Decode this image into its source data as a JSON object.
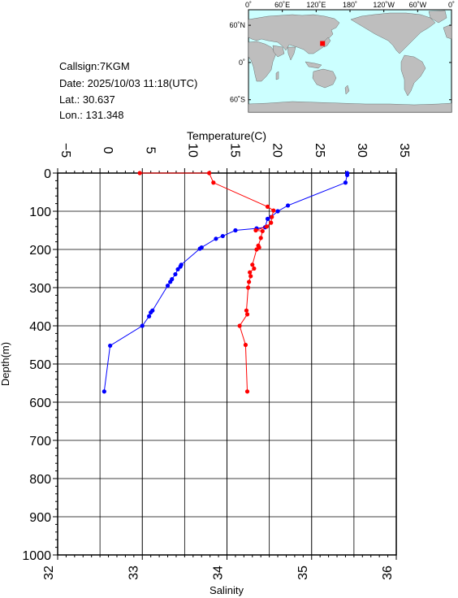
{
  "info": {
    "callsign": "Callsign:7KGM",
    "date": "Date:  2025/10/03 11:18(UTC)",
    "lat": "Lat.:   30.637",
    "lon": "Lon.:  131.348"
  },
  "map": {
    "lon_labels": [
      "0˚",
      "60˚E",
      "120˚E",
      "180˚",
      "120˚W",
      "60˚W",
      "0˚"
    ],
    "lat_labels": [
      "60˚N",
      "0˚",
      "60˚S"
    ],
    "station": {
      "lat": 30.637,
      "lon": 131.348
    },
    "colors": {
      "ocean": "#ccffff",
      "land": "#bebebe",
      "marker": "#ff0000"
    }
  },
  "chart_data": {
    "type": "line",
    "top_axis": {
      "label": "Temperature(C)",
      "range": [
        -5,
        35
      ],
      "ticks": [
        "−5",
        "0",
        "5",
        "10",
        "15",
        "20",
        "25",
        "30",
        "35"
      ]
    },
    "bottom_axis": {
      "label": "Salinity",
      "range": [
        32,
        36
      ],
      "ticks": [
        "32",
        "33",
        "34",
        "35",
        "36"
      ]
    },
    "y_axis": {
      "label": "Depth(m)",
      "range": [
        0,
        1000
      ],
      "inverted": true,
      "ticks": [
        "0",
        "100",
        "200",
        "300",
        "400",
        "500",
        "600",
        "700",
        "800",
        "900",
        "1000"
      ]
    },
    "grid": true,
    "series": [
      {
        "axis": "temperature",
        "color": "#0000ff",
        "points": [
          [
            29.2,
            0
          ],
          [
            29.2,
            5
          ],
          [
            29.0,
            25
          ],
          [
            22.2,
            85
          ],
          [
            21.0,
            100
          ],
          [
            20.2,
            115
          ],
          [
            19.8,
            120
          ],
          [
            19.5,
            142
          ],
          [
            18.5,
            145
          ],
          [
            16.0,
            150
          ],
          [
            14.5,
            165
          ],
          [
            13.7,
            172
          ],
          [
            12.0,
            195
          ],
          [
            11.8,
            198
          ],
          [
            9.6,
            240
          ],
          [
            9.5,
            245
          ],
          [
            9.2,
            252
          ],
          [
            8.9,
            265
          ],
          [
            8.5,
            278
          ],
          [
            8.3,
            285
          ],
          [
            8.0,
            295
          ],
          [
            6.2,
            360
          ],
          [
            6.0,
            365
          ],
          [
            5.8,
            375
          ],
          [
            5.0,
            400
          ],
          [
            1.2,
            452
          ],
          [
            0.5,
            572
          ]
        ]
      },
      {
        "axis": "salinity",
        "color": "#ff0000",
        "points": [
          [
            32.97,
            0
          ],
          [
            33.79,
            0
          ],
          [
            33.84,
            25
          ],
          [
            34.48,
            88
          ],
          [
            34.55,
            98
          ],
          [
            34.53,
            115
          ],
          [
            34.52,
            130
          ],
          [
            34.47,
            140
          ],
          [
            34.34,
            150
          ],
          [
            34.42,
            152
          ],
          [
            34.4,
            170
          ],
          [
            34.37,
            190
          ],
          [
            34.38,
            195
          ],
          [
            34.35,
            200
          ],
          [
            34.3,
            240
          ],
          [
            34.32,
            250
          ],
          [
            34.27,
            260
          ],
          [
            34.28,
            270
          ],
          [
            34.26,
            285
          ],
          [
            34.25,
            300
          ],
          [
            34.23,
            360
          ],
          [
            34.24,
            370
          ],
          [
            34.15,
            400
          ],
          [
            34.22,
            450
          ],
          [
            34.24,
            572
          ]
        ]
      }
    ]
  }
}
